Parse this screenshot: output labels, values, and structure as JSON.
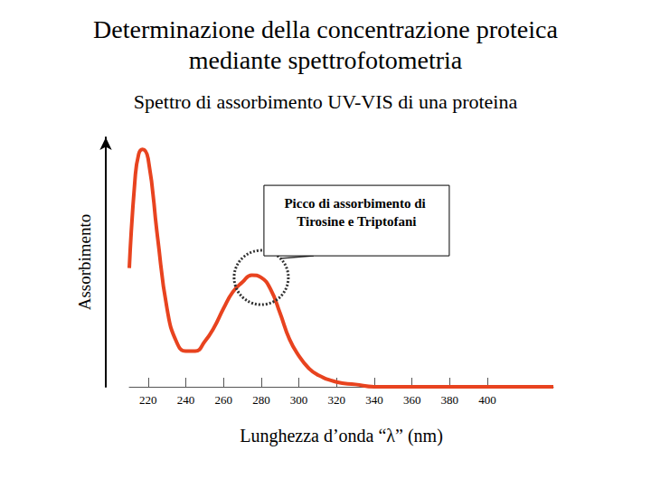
{
  "chart_data": {
    "type": "line",
    "title": "Determinazione della concentrazione proteica\nmediante spettrofotometria",
    "subtitle": "Spettro di assorbimento UV-VIS di una proteina",
    "xlabel": "Lunghezza d’onda “λ” (nm)",
    "ylabel": "Assorbimento",
    "x": [
      210,
      213,
      215,
      217,
      220,
      225,
      230,
      235,
      240,
      245,
      250,
      255,
      260,
      265,
      270,
      275,
      280,
      285,
      290,
      295,
      300,
      305,
      310,
      320,
      330,
      340,
      360,
      380,
      400,
      435
    ],
    "values": [
      0.5,
      0.87,
      0.98,
      1.0,
      0.96,
      0.63,
      0.33,
      0.19,
      0.15,
      0.15,
      0.19,
      0.25,
      0.33,
      0.4,
      0.44,
      0.47,
      0.46,
      0.41,
      0.31,
      0.2,
      0.13,
      0.08,
      0.05,
      0.02,
      0.01,
      0,
      0,
      0,
      0,
      0
    ],
    "color": "#e8431f",
    "xlim": [
      210,
      435
    ],
    "xticks": [
      220,
      240,
      260,
      280,
      300,
      320,
      340,
      360,
      380,
      400
    ],
    "ylim": [
      0,
      1.05
    ],
    "tick_labels": "x",
    "grid": false,
    "annotations": [
      {
        "text": "Picco di assorbimento di Tirosine e Triptofani",
        "x": 280,
        "y": 0.46
      }
    ]
  }
}
